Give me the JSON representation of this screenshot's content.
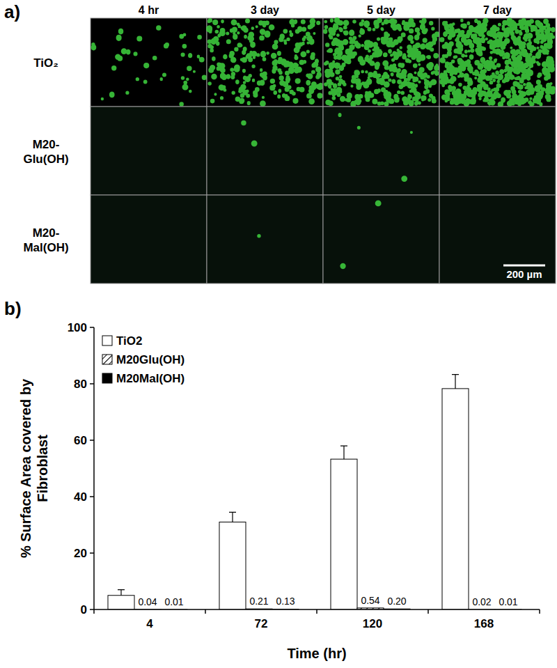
{
  "panel_a": {
    "label": "a)",
    "columns": [
      "4 hr",
      "3 day",
      "5 day",
      "7 day"
    ],
    "rows": [
      "TiO₂",
      "M20-Glu(OH)",
      "M20-Mal(OH)"
    ],
    "scale_bar": "200 µm"
  },
  "panel_b": {
    "label": "b)"
  },
  "chart_data": {
    "type": "bar",
    "categories": [
      "4",
      "72",
      "120",
      "168"
    ],
    "x_label": "Time (hr)",
    "y_label": "% Surface Area covered by Fibroblast",
    "ylim": [
      0,
      100
    ],
    "yticks": [
      0,
      20,
      40,
      60,
      80,
      100
    ],
    "grid": false,
    "legend": "top-left",
    "series": [
      {
        "name": "TiO2",
        "color": "#ffffff",
        "values": [
          5,
          31,
          53.3,
          78.3
        ],
        "errors": [
          2,
          3.5,
          4.7,
          5
        ]
      },
      {
        "name": "M20Glu(OH)",
        "color": "#ffffff",
        "values": [
          0.04,
          0.21,
          0.54,
          0.02
        ],
        "data_labels": true
      },
      {
        "name": "M20Mal(OH)",
        "color": "#000000",
        "values": [
          0.01,
          0.13,
          0.2,
          0.01
        ],
        "value_labels": [
          "0.01",
          "0.13",
          "0.20",
          "0.01"
        ],
        "data_labels": true
      }
    ]
  }
}
